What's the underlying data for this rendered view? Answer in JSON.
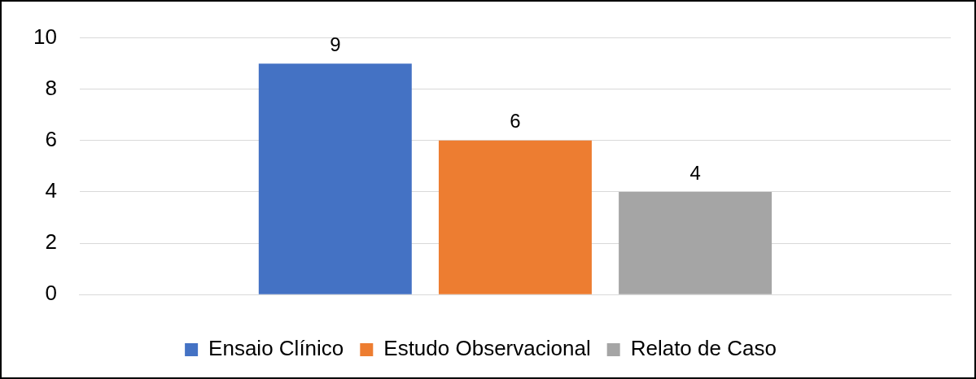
{
  "chart_data": {
    "type": "bar",
    "categories": [
      null
    ],
    "series": [
      {
        "name": "Ensaio Clínico",
        "color": "#4472c4",
        "values": [
          9
        ]
      },
      {
        "name": "Estudo Observacional",
        "color": "#ed7d31",
        "values": [
          6
        ]
      },
      {
        "name": "Relato de Caso",
        "color": "#a5a5a5",
        "values": [
          4
        ]
      }
    ],
    "ylim": [
      0,
      10
    ],
    "yticks": [
      0,
      2,
      4,
      6,
      8,
      10
    ],
    "grid": "y",
    "legend": "bottom",
    "data_labels": true
  }
}
